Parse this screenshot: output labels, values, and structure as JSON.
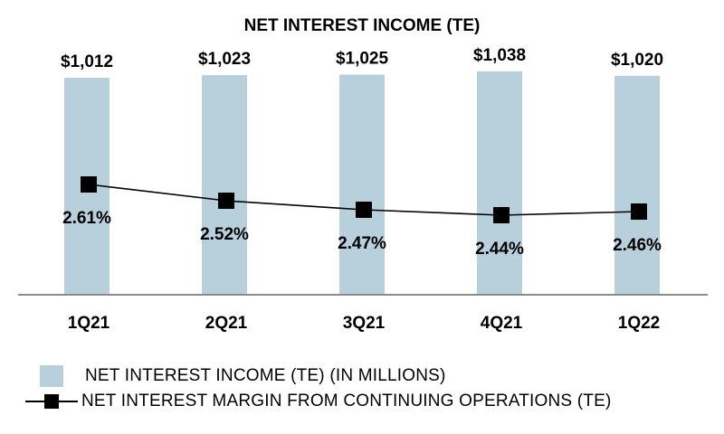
{
  "chart_data": {
    "type": "bar+line",
    "title": "NET INTEREST INCOME (TE)",
    "categories": [
      "1Q21",
      "2Q21",
      "3Q21",
      "4Q21",
      "1Q22"
    ],
    "series": [
      {
        "name": "NET INTEREST INCOME (TE) (IN MILLIONS)",
        "kind": "bar",
        "values": [
          1012,
          1023,
          1025,
          1038,
          1020
        ],
        "labels": [
          "$1,012",
          "$1,023",
          "$1,025",
          "$1,038",
          "$1,020"
        ],
        "color": "#b8d0dc"
      },
      {
        "name": "NET INTEREST MARGIN FROM CONTINUING OPERATIONS (TE)",
        "kind": "line",
        "values": [
          2.61,
          2.52,
          2.47,
          2.44,
          2.46
        ],
        "labels": [
          "2.61%",
          "2.52%",
          "2.47%",
          "2.44%",
          "2.46%"
        ],
        "color": "#000000"
      }
    ],
    "axis_color": "#8c8c8c",
    "legend_position": "bottom-left",
    "grid": false
  }
}
